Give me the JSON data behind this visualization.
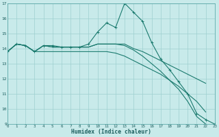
{
  "xlabel": "Humidex (Indice chaleur)",
  "ylabel": "",
  "xlim": [
    0,
    23
  ],
  "ylim": [
    9,
    17
  ],
  "xticks": [
    0,
    1,
    2,
    3,
    4,
    5,
    6,
    7,
    8,
    9,
    10,
    11,
    12,
    13,
    14,
    15,
    16,
    17,
    18,
    19,
    20,
    21,
    22,
    23
  ],
  "yticks": [
    9,
    10,
    11,
    12,
    13,
    14,
    15,
    16,
    17
  ],
  "bg_color": "#c8eaea",
  "grid_color": "#9ecfcf",
  "line_color": "#1a7a6e",
  "line_width": 0.8,
  "marker": "+",
  "marker_size": 3,
  "lines": [
    {
      "x": [
        0,
        1,
        2,
        3,
        4,
        5,
        6,
        7,
        8,
        9,
        10,
        11,
        12,
        13,
        14,
        15,
        16,
        17,
        18,
        19,
        20,
        21,
        22,
        23
      ],
      "y": [
        13.8,
        14.3,
        14.2,
        13.8,
        14.2,
        14.2,
        14.1,
        14.1,
        14.1,
        14.3,
        15.1,
        15.7,
        15.4,
        17.0,
        16.4,
        15.8,
        14.4,
        13.3,
        12.6,
        11.8,
        11.0,
        9.7,
        9.3,
        9.0
      ],
      "has_markers": true
    },
    {
      "x": [
        0,
        1,
        2,
        3,
        4,
        5,
        6,
        7,
        8,
        9,
        10,
        11,
        12,
        13,
        14,
        15,
        16,
        17,
        18,
        19,
        20,
        21,
        22
      ],
      "y": [
        13.8,
        14.3,
        14.2,
        13.8,
        14.2,
        14.1,
        14.1,
        14.1,
        14.1,
        14.1,
        14.3,
        14.3,
        14.3,
        14.3,
        14.0,
        13.8,
        13.5,
        13.2,
        12.9,
        12.6,
        12.3,
        12.0,
        11.7
      ],
      "has_markers": false
    },
    {
      "x": [
        0,
        1,
        2,
        3,
        4,
        5,
        6,
        7,
        8,
        9,
        10,
        11,
        12,
        13,
        14,
        15,
        16,
        17,
        18,
        19,
        20,
        21,
        22
      ],
      "y": [
        13.8,
        14.3,
        14.2,
        13.8,
        14.2,
        14.1,
        14.1,
        14.1,
        14.1,
        14.1,
        14.3,
        14.3,
        14.3,
        14.2,
        13.9,
        13.5,
        13.0,
        12.5,
        11.9,
        11.3,
        10.5,
        9.5,
        9.0
      ],
      "has_markers": false
    },
    {
      "x": [
        0,
        1,
        2,
        3,
        4,
        5,
        6,
        7,
        8,
        9,
        10,
        11,
        12,
        13,
        14,
        15,
        16,
        17,
        18,
        19,
        20,
        21,
        22
      ],
      "y": [
        13.8,
        14.3,
        14.2,
        13.8,
        13.8,
        13.8,
        13.8,
        13.8,
        13.8,
        13.8,
        13.8,
        13.8,
        13.7,
        13.5,
        13.2,
        12.9,
        12.6,
        12.3,
        11.9,
        11.5,
        11.0,
        10.5,
        9.8
      ],
      "has_markers": false
    }
  ]
}
